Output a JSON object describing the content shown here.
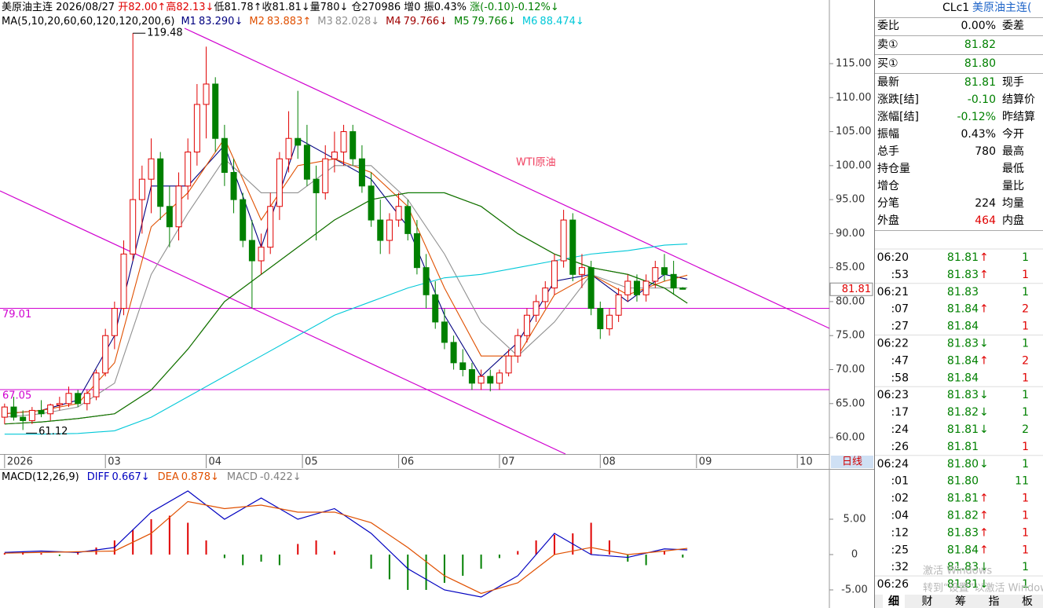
{
  "info_bar": [
    {
      "text": "美原油主连",
      "color": "#000000"
    },
    {
      "text": " 2026/08/27 ",
      "color": "#000000"
    },
    {
      "text": "开82.00↑",
      "color": "#e00000"
    },
    {
      "text": "高82.13↓",
      "color": "#e00000"
    },
    {
      "text": "低81.78↑",
      "color": "#000000"
    },
    {
      "text": "收81.81↓",
      "color": "#000000"
    },
    {
      "text": "量780↓",
      "color": "#000000"
    },
    {
      "text": " 仓270986 ",
      "color": "#000000"
    },
    {
      "text": "增0 ",
      "color": "#000000"
    },
    {
      "text": "振0.43% ",
      "color": "#000000"
    },
    {
      "text": "涨(-0.10)-0.12%↓",
      "color": "#008000"
    }
  ],
  "chart_data": {
    "type": "candlestick",
    "x": [
      0,
      2,
      4,
      6,
      8,
      10,
      12,
      14,
      16,
      18,
      20,
      22,
      24,
      26,
      28,
      30,
      32,
      34,
      36,
      38,
      40,
      42,
      44,
      46,
      48,
      50,
      52,
      54,
      56,
      58,
      60,
      62,
      64,
      66,
      68,
      70,
      72,
      74,
      76,
      78,
      80,
      82,
      84,
      86,
      88,
      90,
      92,
      94,
      96,
      98,
      100,
      102,
      104,
      106,
      108,
      110,
      112,
      114,
      116,
      118,
      120,
      122,
      124,
      126,
      128,
      130,
      132,
      134,
      136,
      138,
      140,
      142,
      144,
      146,
      148
    ],
    "open": [
      63,
      64.5,
      63,
      62.5,
      64,
      63.5,
      64.8,
      65,
      66.5,
      65,
      66,
      69.5,
      75,
      79,
      87,
      95,
      98,
      101,
      94,
      91,
      97,
      102,
      109,
      112,
      104,
      99,
      95,
      89,
      86,
      88,
      94,
      101,
      104,
      103,
      98,
      96,
      101,
      102,
      105,
      101,
      97,
      92,
      89,
      92,
      94,
      90,
      85,
      81,
      77,
      74,
      71,
      70,
      68,
      69,
      68,
      69.5,
      72,
      75,
      78,
      80,
      82,
      86,
      92,
      84,
      85,
      79,
      76,
      78,
      81,
      83,
      81,
      83,
      85,
      84,
      82
    ],
    "high": [
      65,
      66,
      64,
      64.5,
      65.5,
      65,
      66,
      67.5,
      67,
      67,
      70,
      76,
      80,
      89,
      119.48,
      100,
      104,
      102,
      97,
      99,
      104,
      112,
      117.5,
      113,
      106,
      101,
      96,
      92,
      90,
      96,
      102,
      108,
      111,
      106,
      100,
      103,
      105,
      106,
      106,
      103,
      99,
      95,
      93,
      96,
      95,
      92,
      87,
      83,
      79,
      75,
      73,
      71,
      70,
      70,
      70,
      73,
      76,
      79,
      81,
      83,
      87,
      93.5,
      93,
      87,
      86,
      80,
      79,
      82,
      84,
      84,
      84,
      86,
      87,
      86,
      82.13
    ],
    "low": [
      62,
      62.5,
      61.12,
      62,
      63,
      62.5,
      64,
      64.5,
      64.5,
      64,
      65.5,
      69,
      73,
      78,
      86,
      90,
      93,
      92,
      88,
      89,
      95,
      100,
      104,
      102,
      97,
      93,
      88,
      79,
      84,
      87,
      92,
      99,
      101,
      97,
      89,
      95,
      99,
      100,
      100,
      96,
      91,
      87,
      87,
      91,
      89,
      84,
      79,
      76,
      73,
      70,
      69,
      67,
      67,
      66.8,
      67,
      69,
      71,
      74,
      77,
      79,
      81,
      85,
      83,
      82,
      78,
      74.5,
      75,
      77,
      80,
      80,
      80,
      82,
      83,
      81,
      81.78
    ],
    "close": [
      64.5,
      63,
      62.5,
      64,
      63.5,
      64.8,
      65,
      66.5,
      65,
      66.5,
      69.5,
      75,
      79,
      87,
      95,
      98,
      101,
      94,
      91,
      97,
      102,
      109,
      112,
      104,
      99,
      95,
      89,
      86,
      88,
      94,
      101,
      104,
      103,
      98,
      96,
      101,
      102,
      105,
      101,
      97,
      92,
      89,
      92,
      94,
      90,
      85,
      81,
      77,
      74,
      71,
      70,
      68,
      69,
      68,
      69.5,
      72,
      75,
      78,
      80,
      82,
      86,
      92,
      84,
      85,
      79,
      76,
      78,
      81,
      83,
      81,
      83,
      85,
      84,
      82,
      81.81
    ],
    "up_color": "#e00000",
    "down_color": "#008000",
    "xlim": [
      -1,
      180
    ],
    "ylim": [
      57.58,
      120.2
    ],
    "xticks": [
      {
        "value": 0,
        "label": "2026"
      },
      {
        "value": 22,
        "label": "03"
      },
      {
        "value": 44,
        "label": "04"
      },
      {
        "value": 65,
        "label": "05"
      },
      {
        "value": 86,
        "label": "06"
      },
      {
        "value": 108,
        "label": "07"
      },
      {
        "value": 130,
        "label": "08"
      },
      {
        "value": 151,
        "label": "09"
      },
      {
        "value": 173,
        "label": "10"
      }
    ],
    "yticks": [
      {
        "value": 115,
        "label": "115.00"
      },
      {
        "value": 110,
        "label": "110.00"
      },
      {
        "value": 105,
        "label": "105.00"
      },
      {
        "value": 100,
        "label": "100.00"
      },
      {
        "value": 95,
        "label": "95.00"
      },
      {
        "value": 90,
        "label": "90.00"
      },
      {
        "value": 85,
        "label": "85.00"
      },
      {
        "value": 80,
        "label": "80.00"
      },
      {
        "value": 75,
        "label": "75.00"
      },
      {
        "value": 70,
        "label": "70.00"
      },
      {
        "value": 65,
        "label": "65.00"
      },
      {
        "value": 60,
        "label": "60.00"
      }
    ],
    "hlines": [
      {
        "value": 79.01,
        "label": "79.01"
      },
      {
        "value": 67.05,
        "label": "67.05"
      }
    ],
    "hline_color": "#d000d0",
    "annotation": "WTI原油",
    "annotation_color": "#f04060",
    "high_label": "119.48",
    "low_label": "61.12",
    "last_price_label": "81.81",
    "period_button": "日线",
    "ma": {
      "label": "MA(5,10,20,60,60,120,120,200,6)",
      "x": [
        0,
        8,
        16,
        24,
        32,
        40,
        48,
        56,
        64,
        72,
        80,
        88,
        96,
        104,
        112,
        120,
        128,
        136,
        144,
        149
      ],
      "series": [
        {
          "name": "M1",
          "label": "83.290↓",
          "color": "#000080",
          "values": [
            63.5,
            64,
            65.5,
            75,
            97,
            97,
            103,
            88,
            104,
            101,
            98,
            91,
            78,
            69,
            74,
            83,
            84,
            80,
            84,
            83.29
          ]
        },
        {
          "name": "M2",
          "label": "83.883↑",
          "color": "#e05000",
          "values": [
            63.5,
            64,
            65,
            71,
            91,
            96,
            104,
            92,
            100,
            101,
            99,
            94,
            82,
            72,
            72,
            81,
            84,
            81,
            83,
            83.883
          ]
        },
        {
          "name": "M3",
          "label": "82.028↓",
          "color": "#909090",
          "values": [
            63,
            63.5,
            64.5,
            68,
            84,
            93,
            101,
            96,
            96,
            100,
            100,
            95,
            87,
            77,
            72,
            77,
            84,
            82,
            82,
            82.028
          ]
        },
        {
          "name": "M4",
          "label": "79.766↓",
          "color": "#a00000",
          "values": [
            62,
            62.3,
            62.8,
            63.5,
            67,
            73,
            80,
            84,
            88,
            92,
            95,
            96,
            96,
            94,
            90,
            87,
            85,
            84,
            82,
            79.766
          ]
        },
        {
          "name": "M5",
          "label": "79.766↓",
          "color": "#008000",
          "values": [
            62,
            62.3,
            62.8,
            63.5,
            67,
            73,
            80,
            84,
            88,
            92,
            95,
            96,
            96,
            94,
            90,
            87,
            85,
            84,
            82,
            79.766
          ]
        },
        {
          "name": "M6",
          "label": "88.474↓",
          "color": "#00c8d8",
          "values": [
            60.5,
            60.5,
            60.6,
            61,
            63,
            66,
            69,
            72,
            75,
            78,
            80,
            82,
            83.5,
            84,
            85,
            86,
            87,
            87.5,
            88.3,
            88.474
          ]
        }
      ]
    },
    "macd": {
      "title": "MACD(12,26,9)",
      "ylim": [
        -7.56,
        10.22
      ],
      "yticks": [
        {
          "value": 5,
          "label": "5.00"
        },
        0,
        {
          "value": -5,
          "label": "-5.00"
        }
      ],
      "x": [
        0,
        8,
        16,
        24,
        32,
        40,
        48,
        56,
        64,
        72,
        80,
        88,
        96,
        104,
        112,
        120,
        128,
        136,
        144,
        149
      ],
      "series": [
        {
          "name": "DIFF",
          "label": "0.667↓",
          "color": "#0000c0",
          "values": [
            0.3,
            0.5,
            0.3,
            1,
            6,
            9,
            5,
            8,
            5,
            6.5,
            3,
            -2,
            -5,
            -6,
            -3,
            3,
            0,
            -0.4,
            0.8,
            0.667
          ]
        },
        {
          "name": "DEA",
          "label": "0.878↓",
          "color": "#e05000",
          "values": [
            0.2,
            0.3,
            0.4,
            0.5,
            3,
            7.5,
            6.5,
            7,
            6,
            6,
            4.5,
            1,
            -3,
            -5.5,
            -4,
            0,
            1,
            0,
            0.5,
            0.878
          ]
        }
      ],
      "hist": {
        "name": "MACD",
        "label": "-0.422↓",
        "label_color": "#808080",
        "x": [
          0,
          4,
          8,
          12,
          16,
          20,
          24,
          28,
          32,
          36,
          40,
          44,
          48,
          52,
          56,
          60,
          64,
          68,
          72,
          76,
          80,
          84,
          88,
          92,
          96,
          100,
          104,
          108,
          112,
          116,
          120,
          124,
          128,
          132,
          136,
          140,
          144,
          148
        ],
        "values": [
          0.2,
          0.4,
          0.2,
          -0.2,
          0.3,
          1,
          2,
          3.5,
          5,
          5.5,
          4.5,
          2,
          -0.5,
          -1.5,
          -1,
          -1.5,
          1.5,
          2,
          0.5,
          0,
          -2,
          -3.5,
          -5,
          -5,
          -4,
          -3,
          -2,
          -0.5,
          0.5,
          2,
          2.8,
          3,
          4.5,
          2,
          -1,
          -1.5,
          0.5,
          -0.422
        ]
      }
    }
  },
  "quote": {
    "code": "CLc1",
    "name": "美原油主连(",
    "rows": [
      {
        "label": "委比",
        "value": "0.00%",
        "label2": "委差",
        "color": "#000000"
      },
      {
        "label": "卖①",
        "value": "81.82",
        "label2": "",
        "color": "#008000"
      },
      {
        "label": "买①",
        "value": "81.80",
        "label2": "",
        "color": "#008000"
      },
      {
        "label": "最新",
        "value": "81.81",
        "label2": "现手",
        "color": "#008000"
      },
      {
        "label": "涨跌[结]",
        "value": "-0.10",
        "label2": "结算价",
        "color": "#008000"
      },
      {
        "label": "涨幅[结]",
        "value": "-0.12%",
        "label2": "昨结算",
        "color": "#008000"
      },
      {
        "label": "振幅",
        "value": "0.43%",
        "label2": "今开",
        "color": "#000000"
      },
      {
        "label": "总手",
        "value": "780",
        "label2": "最高",
        "color": "#000000"
      },
      {
        "label": "持仓量",
        "value": "",
        "label2": "最低",
        "color": "#000000"
      },
      {
        "label": "增仓",
        "value": "",
        "label2": "量比",
        "color": "#000000"
      },
      {
        "label": "分笔",
        "value": "224",
        "label2": "均量",
        "color": "#000000"
      },
      {
        "label": "外盘",
        "value": "464",
        "label2": "内盘",
        "color": "#e00000"
      }
    ],
    "ticks": [
      {
        "time": "06:20",
        "price": "81.81",
        "arrow": "↑",
        "vol": "1",
        "vol_color": "#008000"
      },
      {
        "time": ":53",
        "price": "81.83",
        "arrow": "↑",
        "vol": "1",
        "vol_color": "#e00000"
      },
      {
        "time": "06:21",
        "price": "81.83",
        "arrow": "",
        "vol": "1",
        "vol_color": "#008000"
      },
      {
        "time": ":07",
        "price": "81.84",
        "arrow": "↑",
        "vol": "2",
        "vol_color": "#e00000"
      },
      {
        "time": ":27",
        "price": "81.84",
        "arrow": "",
        "vol": "1",
        "vol_color": "#e00000"
      },
      {
        "time": "06:22",
        "price": "81.83",
        "arrow": "↓",
        "vol": "1",
        "vol_color": "#008000"
      },
      {
        "time": ":47",
        "price": "81.84",
        "arrow": "↑",
        "vol": "2",
        "vol_color": "#e00000"
      },
      {
        "time": ":58",
        "price": "81.84",
        "arrow": "",
        "vol": "1",
        "vol_color": "#e00000"
      },
      {
        "time": "06:23",
        "price": "81.83",
        "arrow": "↓",
        "vol": "1",
        "vol_color": "#008000"
      },
      {
        "time": ":17",
        "price": "81.82",
        "arrow": "↓",
        "vol": "1",
        "vol_color": "#008000"
      },
      {
        "time": ":24",
        "price": "81.81",
        "arrow": "↓",
        "vol": "2",
        "vol_color": "#008000"
      },
      {
        "time": ":26",
        "price": "81.81",
        "arrow": "",
        "vol": "1",
        "vol_color": "#e00000"
      },
      {
        "time": "06:24",
        "price": "81.80",
        "arrow": "↓",
        "vol": "1",
        "vol_color": "#008000"
      },
      {
        "time": ":01",
        "price": "81.80",
        "arrow": "",
        "vol": "11",
        "vol_color": "#008000"
      },
      {
        "time": ":02",
        "price": "81.81",
        "arrow": "↑",
        "vol": "1",
        "vol_color": "#e00000"
      },
      {
        "time": ":04",
        "price": "81.82",
        "arrow": "↑",
        "vol": "1",
        "vol_color": "#e00000"
      },
      {
        "time": ":12",
        "price": "81.83",
        "arrow": "↑",
        "vol": "1",
        "vol_color": "#e00000"
      },
      {
        "time": ":25",
        "price": "81.84",
        "arrow": "↑",
        "vol": "1",
        "vol_color": "#e00000"
      },
      {
        "time": ":32",
        "price": "81.83",
        "arrow": "↓",
        "vol": "1",
        "vol_color": "#008000"
      },
      {
        "time": "06:26",
        "price": "81.81",
        "arrow": "↓",
        "vol": "1",
        "vol_color": "#008000"
      }
    ],
    "tabs": [
      "细",
      "财",
      "筹",
      "指",
      "板"
    ]
  },
  "watermark": [
    "激活 Windows",
    "转到“设置”以激活 Windows。"
  ]
}
